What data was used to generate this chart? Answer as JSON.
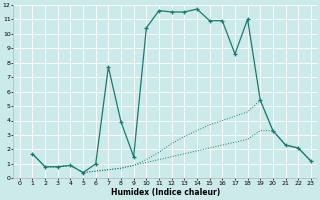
{
  "xlabel": "Humidex (Indice chaleur)",
  "xlim": [
    -0.5,
    23.5
  ],
  "ylim": [
    0,
    12
  ],
  "xticks": [
    0,
    1,
    2,
    3,
    4,
    5,
    6,
    7,
    8,
    9,
    10,
    11,
    12,
    13,
    14,
    15,
    16,
    17,
    18,
    19,
    20,
    21,
    22,
    23
  ],
  "yticks": [
    0,
    1,
    2,
    3,
    4,
    5,
    6,
    7,
    8,
    9,
    10,
    11,
    12
  ],
  "bg_color": "#cceaea",
  "line_color": "#1a7a6e",
  "grid_color": "#ffffff",
  "line_main": {
    "x": [
      1,
      2,
      3,
      4,
      5,
      6,
      7,
      8,
      9,
      10,
      11,
      12,
      13,
      14,
      15,
      16,
      17,
      18,
      19,
      20,
      21,
      22,
      23
    ],
    "y": [
      1.7,
      0.8,
      0.8,
      0.9,
      0.4,
      1.0,
      7.7,
      3.9,
      1.5,
      10.4,
      11.6,
      11.5,
      11.5,
      11.7,
      10.9,
      10.9,
      8.6,
      11.0,
      5.4,
      3.3,
      2.3,
      2.1,
      1.2
    ]
  },
  "line_upper": {
    "x": [
      1,
      2,
      3,
      4,
      5,
      6,
      7,
      8,
      9,
      10,
      11,
      12,
      13,
      14,
      15,
      16,
      17,
      18,
      19,
      20,
      21,
      22,
      23
    ],
    "y": [
      1.7,
      0.8,
      0.8,
      0.9,
      0.4,
      0.5,
      0.6,
      0.7,
      0.9,
      1.3,
      1.8,
      2.4,
      2.9,
      3.3,
      3.7,
      4.0,
      4.3,
      4.6,
      5.4,
      3.3,
      2.3,
      2.1,
      1.2
    ]
  },
  "line_lower": {
    "x": [
      1,
      2,
      3,
      4,
      5,
      6,
      7,
      8,
      9,
      10,
      11,
      12,
      13,
      14,
      15,
      16,
      17,
      18,
      19,
      20,
      21,
      22,
      23
    ],
    "y": [
      1.7,
      0.8,
      0.8,
      0.9,
      0.4,
      0.5,
      0.6,
      0.7,
      0.9,
      1.1,
      1.3,
      1.5,
      1.7,
      1.9,
      2.1,
      2.3,
      2.5,
      2.7,
      3.3,
      3.3,
      2.3,
      2.1,
      1.2
    ]
  }
}
